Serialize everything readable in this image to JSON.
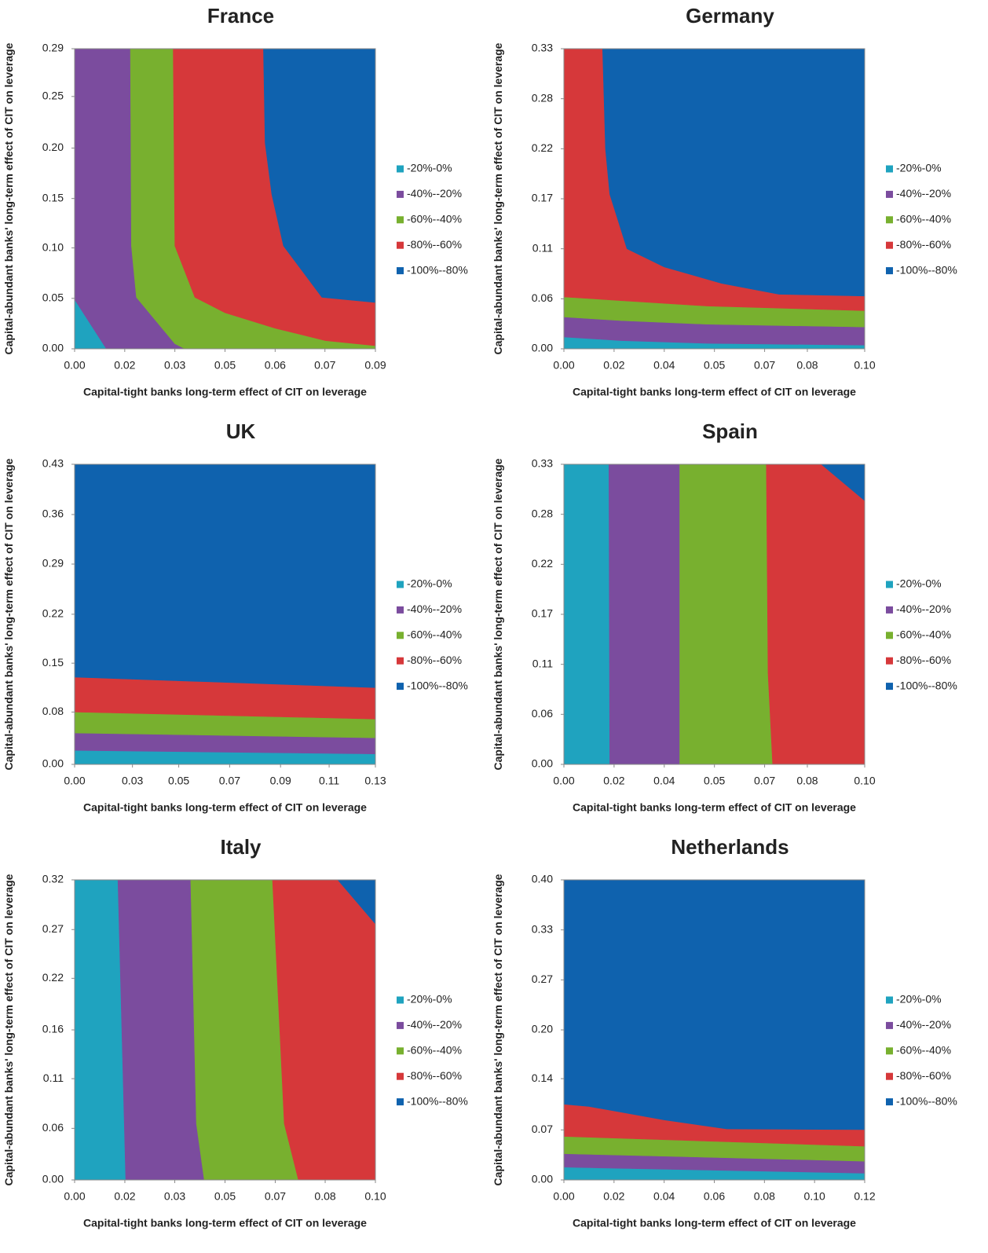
{
  "chart_data": [
    {
      "type": "contour",
      "title": "France",
      "x_label": "Capital-tight  banks long-term effect of CIT on leverage",
      "y_label": "Capital-abundant  banks' long-term effect of CIT on leverage",
      "xlim": [
        0,
        0.09
      ],
      "ylim": [
        0,
        0.2915
      ],
      "xticks": [
        {
          "value": 0,
          "label": "0.00"
        },
        {
          "value": 0.015,
          "label": "0.02"
        },
        {
          "value": 0.03,
          "label": "0.03"
        },
        {
          "value": 0.045,
          "label": "0.05"
        },
        {
          "value": 0.06,
          "label": "0.06"
        },
        {
          "value": 0.0749,
          "label": "0.07"
        },
        {
          "value": 0.09,
          "label": "0.09"
        }
      ],
      "yticks": [
        {
          "value": 0,
          "label": "0.00"
        },
        {
          "value": 0.049,
          "label": "0.05"
        },
        {
          "value": 0.098,
          "label": "0.10"
        },
        {
          "value": 0.146,
          "label": "0.15"
        },
        {
          "value": 0.195,
          "label": "0.20"
        },
        {
          "value": 0.2451,
          "label": "0.25"
        },
        {
          "value": 0.2915,
          "label": "0.29"
        }
      ],
      "series": [
        {
          "name": "-20%-0%",
          "color": "#1fa3bf",
          "x": [
            0,
            0,
            0.0095
          ],
          "y": [
            0,
            0.048,
            0
          ]
        },
        {
          "name": "-40%--20%",
          "color": "#7b4c9e",
          "x": [
            0,
            0,
            0.0167,
            0.017,
            0.0185,
            0.03,
            0.033,
            0.0095
          ],
          "y": [
            0.048,
            0.2915,
            0.2915,
            0.1,
            0.05,
            0.005,
            0,
            0
          ]
        },
        {
          "name": "-60%--40%",
          "color": "#78b02f",
          "x": [
            0.0167,
            0.0295,
            0.03,
            0.036,
            0.045,
            0.06,
            0.075,
            0.09,
            0.09,
            0.033,
            0.03,
            0.0185,
            0.017
          ],
          "y": [
            0.2915,
            0.2915,
            0.1,
            0.05,
            0.035,
            0.02,
            0.008,
            0.003,
            0,
            0,
            0.005,
            0.05,
            0.1
          ]
        },
        {
          "name": "-80%--60%",
          "color": "#d6383a",
          "x": [
            0.0295,
            0.0565,
            0.057,
            0.059,
            0.0625,
            0.074,
            0.09,
            0.09,
            0.075,
            0.06,
            0.045,
            0.036,
            0.03
          ],
          "y": [
            0.2915,
            0.2915,
            0.2,
            0.15,
            0.1,
            0.05,
            0.045,
            0.003,
            0.008,
            0.02,
            0.035,
            0.05,
            0.1
          ]
        },
        {
          "name": "-100%--80%",
          "color": "#0f62ae",
          "x": [
            0.0565,
            0.09,
            0.09,
            0.074,
            0.0625,
            0.059,
            0.057
          ],
          "y": [
            0.2915,
            0.2915,
            0.045,
            0.05,
            0.1,
            0.15,
            0.2
          ]
        }
      ]
    },
    {
      "type": "contour",
      "title": "Germany",
      "x_label": "Capital-tight  banks long-term effect of CIT on leverage",
      "y_label": "Capital-abundant  banks' long-term effect of CIT on leverage",
      "xlim": [
        0,
        0.1049
      ],
      "ylim": [
        0,
        0.33
      ],
      "xticks": [
        {
          "value": 0,
          "label": "0.00"
        },
        {
          "value": 0.0175,
          "label": "0.02"
        },
        {
          "value": 0.035,
          "label": "0.04"
        },
        {
          "value": 0.0525,
          "label": "0.05"
        },
        {
          "value": 0.07,
          "label": "0.07"
        },
        {
          "value": 0.0849,
          "label": "0.08"
        },
        {
          "value": 0.1049,
          "label": "0.10"
        }
      ],
      "yticks": [
        {
          "value": 0,
          "label": "0.00"
        },
        {
          "value": 0.055,
          "label": "0.06"
        },
        {
          "value": 0.11,
          "label": "0.11"
        },
        {
          "value": 0.165,
          "label": "0.17"
        },
        {
          "value": 0.22,
          "label": "0.22"
        },
        {
          "value": 0.275,
          "label": "0.28"
        },
        {
          "value": 0.33,
          "label": "0.33"
        }
      ],
      "series": [
        {
          "name": "-20%-0%",
          "color": "#1fa3bf",
          "x": [
            0,
            0,
            0.02,
            0.05,
            0.1049,
            0.1049
          ],
          "y": [
            0,
            0.013,
            0.009,
            0.006,
            0.004,
            0
          ]
        },
        {
          "name": "-40%--20%",
          "color": "#7b4c9e",
          "x": [
            0,
            0.02,
            0.05,
            0.1049,
            0.1049,
            0.05,
            0.02,
            0
          ],
          "y": [
            0.035,
            0.031,
            0.027,
            0.024,
            0.004,
            0.006,
            0.009,
            0.013
          ]
        },
        {
          "name": "-60%--40%",
          "color": "#78b02f",
          "x": [
            0,
            0.02,
            0.05,
            0.1049,
            0.1049,
            0.05,
            0.02,
            0
          ],
          "y": [
            0.057,
            0.053,
            0.047,
            0.042,
            0.024,
            0.027,
            0.031,
            0.035
          ]
        },
        {
          "name": "-80%--60%",
          "color": "#d6383a",
          "x": [
            0,
            0,
            0.0135,
            0.0145,
            0.016,
            0.022,
            0.035,
            0.055,
            0.075,
            0.1049,
            0.1049,
            0.05,
            0.02
          ],
          "y": [
            0.057,
            0.33,
            0.33,
            0.22,
            0.17,
            0.11,
            0.09,
            0.072,
            0.06,
            0.058,
            0.042,
            0.047,
            0.053
          ]
        },
        {
          "name": "-100%--80%",
          "color": "#0f62ae",
          "x": [
            0.0135,
            0.1049,
            0.1049,
            0.075,
            0.055,
            0.035,
            0.022,
            0.016,
            0.0145
          ],
          "y": [
            0.33,
            0.33,
            0.058,
            0.06,
            0.072,
            0.09,
            0.11,
            0.17,
            0.22
          ]
        }
      ]
    },
    {
      "type": "contour",
      "title": "UK",
      "x_label": "Capital-tight  banks long-term effect of CIT on leverage",
      "y_label": "Capital-abundant  banks' long-term effect of CIT on leverage",
      "xlim": [
        0,
        0.13
      ],
      "ylim": [
        0,
        0.43
      ],
      "xticks": [
        {
          "value": 0,
          "label": "0.00"
        },
        {
          "value": 0.025,
          "label": "0.03"
        },
        {
          "value": 0.045,
          "label": "0.05"
        },
        {
          "value": 0.067,
          "label": "0.07"
        },
        {
          "value": 0.089,
          "label": "0.09"
        },
        {
          "value": 0.11,
          "label": "0.11"
        },
        {
          "value": 0.13,
          "label": "0.13"
        }
      ],
      "yticks": [
        {
          "value": 0,
          "label": "0.00"
        },
        {
          "value": 0.075,
          "label": "0.08"
        },
        {
          "value": 0.145,
          "label": "0.15"
        },
        {
          "value": 0.2151,
          "label": "0.22"
        },
        {
          "value": 0.287,
          "label": "0.29"
        },
        {
          "value": 0.358,
          "label": "0.36"
        },
        {
          "value": 0.43,
          "label": "0.43"
        }
      ],
      "series": [
        {
          "name": "-20%-0%",
          "color": "#1fa3bf",
          "x": [
            0,
            0,
            0.13,
            0.13
          ],
          "y": [
            0,
            0.02,
            0.015,
            0
          ]
        },
        {
          "name": "-40%--20%",
          "color": "#7b4c9e",
          "x": [
            0,
            0.13,
            0.13,
            0
          ],
          "y": [
            0.045,
            0.038,
            0.015,
            0.02
          ]
        },
        {
          "name": "-60%--40%",
          "color": "#78b02f",
          "x": [
            0,
            0.13,
            0.13,
            0
          ],
          "y": [
            0.075,
            0.065,
            0.038,
            0.045
          ]
        },
        {
          "name": "-80%--60%",
          "color": "#d6383a",
          "x": [
            0,
            0.13,
            0.13,
            0
          ],
          "y": [
            0.125,
            0.11,
            0.065,
            0.075
          ]
        },
        {
          "name": "-100%--80%",
          "color": "#0f62ae",
          "x": [
            0,
            0,
            0.13,
            0.13
          ],
          "y": [
            0.125,
            0.43,
            0.43,
            0.11
          ]
        }
      ]
    },
    {
      "type": "contour",
      "title": "Spain",
      "x_label": "Capital-tight  banks long-term effect of CIT on leverage",
      "y_label": "Capital-abundant  banks' long-term effect of CIT on leverage",
      "xlim": [
        0,
        0.1049
      ],
      "ylim": [
        0,
        0.33
      ],
      "xticks": [
        {
          "value": 0,
          "label": "0.00"
        },
        {
          "value": 0.0175,
          "label": "0.02"
        },
        {
          "value": 0.035,
          "label": "0.04"
        },
        {
          "value": 0.0525,
          "label": "0.05"
        },
        {
          "value": 0.07,
          "label": "0.07"
        },
        {
          "value": 0.0849,
          "label": "0.08"
        },
        {
          "value": 0.1049,
          "label": "0.10"
        }
      ],
      "yticks": [
        {
          "value": 0,
          "label": "0.00"
        },
        {
          "value": 0.055,
          "label": "0.06"
        },
        {
          "value": 0.11,
          "label": "0.11"
        },
        {
          "value": 0.165,
          "label": "0.17"
        },
        {
          "value": 0.22,
          "label": "0.22"
        },
        {
          "value": 0.275,
          "label": "0.28"
        },
        {
          "value": 0.33,
          "label": "0.33"
        }
      ],
      "series": [
        {
          "name": "-20%-0%",
          "color": "#1fa3bf",
          "x": [
            0,
            0,
            0.0157,
            0.016
          ],
          "y": [
            0,
            0.33,
            0.33,
            0
          ]
        },
        {
          "name": "-40%--20%",
          "color": "#7b4c9e",
          "x": [
            0.0157,
            0.0404,
            0.0404,
            0.016
          ],
          "y": [
            0.33,
            0.33,
            0,
            0
          ]
        },
        {
          "name": "-60%--40%",
          "color": "#78b02f",
          "x": [
            0.0404,
            0.0706,
            0.0712,
            0.0728,
            0.0404
          ],
          "y": [
            0.33,
            0.33,
            0.1,
            0,
            0
          ]
        },
        {
          "name": "-80%--60%",
          "color": "#d6383a",
          "x": [
            0.0706,
            0.0898,
            0.1049,
            0.1049,
            0.0728,
            0.0712
          ],
          "y": [
            0.33,
            0.33,
            0.29,
            0,
            0,
            0.1
          ]
        },
        {
          "name": "-100%--80%",
          "color": "#0f62ae",
          "x": [
            0.0898,
            0.1049,
            0.1049
          ],
          "y": [
            0.33,
            0.33,
            0.29
          ]
        }
      ]
    },
    {
      "type": "contour",
      "title": "Italy",
      "x_label": "Capital-tight  banks long-term effect of CIT on leverage",
      "y_label": "Capital-abundant  banks' long-term effect of CIT on leverage",
      "xlim": [
        0,
        0.1
      ],
      "ylim": [
        0,
        0.32
      ],
      "xticks": [
        {
          "value": 0,
          "label": "0.00"
        },
        {
          "value": 0.0167,
          "label": "0.02"
        },
        {
          "value": 0.0333,
          "label": "0.03"
        },
        {
          "value": 0.05,
          "label": "0.05"
        },
        {
          "value": 0.0667,
          "label": "0.07"
        },
        {
          "value": 0.0833,
          "label": "0.08"
        },
        {
          "value": 0.1,
          "label": "0.10"
        }
      ],
      "yticks": [
        {
          "value": 0,
          "label": "0.00"
        },
        {
          "value": 0.055,
          "label": "0.06"
        },
        {
          "value": 0.108,
          "label": "0.11"
        },
        {
          "value": 0.16,
          "label": "0.16"
        },
        {
          "value": 0.215,
          "label": "0.22"
        },
        {
          "value": 0.267,
          "label": "0.27"
        },
        {
          "value": 0.32,
          "label": "0.32"
        }
      ],
      "series": [
        {
          "name": "-20%-0%",
          "color": "#1fa3bf",
          "x": [
            0,
            0,
            0.0144,
            0.017
          ],
          "y": [
            0,
            0.32,
            0.32,
            0
          ]
        },
        {
          "name": "-40%--20%",
          "color": "#7b4c9e",
          "x": [
            0.0144,
            0.0386,
            0.0405,
            0.0431,
            0.017
          ],
          "y": [
            0.32,
            0.32,
            0.06,
            0,
            0
          ]
        },
        {
          "name": "-60%--40%",
          "color": "#78b02f",
          "x": [
            0.0386,
            0.0658,
            0.0697,
            0.0744,
            0.0431,
            0.0405
          ],
          "y": [
            0.32,
            0.32,
            0.06,
            0,
            0,
            0.06
          ]
        },
        {
          "name": "-80%--60%",
          "color": "#d6383a",
          "x": [
            0.0658,
            0.0875,
            0.1,
            0.1,
            0.0744,
            0.0697
          ],
          "y": [
            0.32,
            0.32,
            0.273,
            0,
            0,
            0.06
          ]
        },
        {
          "name": "-100%--80%",
          "color": "#0f62ae",
          "x": [
            0.0875,
            0.1,
            0.1
          ],
          "y": [
            0.32,
            0.32,
            0.273
          ]
        }
      ]
    },
    {
      "type": "contour",
      "title": "Netherlands",
      "x_label": "Capital-tight  banks long-term effect of CIT on leverage",
      "y_label": "Capital-abundant  banks' long-term effect of CIT on leverage",
      "xlim": [
        0,
        0.12
      ],
      "ylim": [
        0,
        0.4
      ],
      "xticks": [
        {
          "value": 0,
          "label": "0.00"
        },
        {
          "value": 0.02,
          "label": "0.02"
        },
        {
          "value": 0.04,
          "label": "0.04"
        },
        {
          "value": 0.06,
          "label": "0.06"
        },
        {
          "value": 0.08,
          "label": "0.08"
        },
        {
          "value": 0.1,
          "label": "0.10"
        },
        {
          "value": 0.12,
          "label": "0.12"
        }
      ],
      "yticks": [
        {
          "value": 0,
          "label": "0.00"
        },
        {
          "value": 0.0667,
          "label": "0.07"
        },
        {
          "value": 0.135,
          "label": "0.14"
        },
        {
          "value": 0.2,
          "label": "0.20"
        },
        {
          "value": 0.2667,
          "label": "0.27"
        },
        {
          "value": 0.3333,
          "label": "0.33"
        },
        {
          "value": 0.4,
          "label": "0.40"
        }
      ],
      "series": [
        {
          "name": "-20%-0%",
          "color": "#1fa3bf",
          "x": [
            0,
            0,
            0.12,
            0.12
          ],
          "y": [
            0,
            0.017,
            0.009,
            0
          ]
        },
        {
          "name": "-40%--20%",
          "color": "#7b4c9e",
          "x": [
            0,
            0.12,
            0.12,
            0
          ],
          "y": [
            0.035,
            0.025,
            0.009,
            0.017
          ]
        },
        {
          "name": "-60%--40%",
          "color": "#78b02f",
          "x": [
            0,
            0.12,
            0.12,
            0
          ],
          "y": [
            0.058,
            0.045,
            0.025,
            0.035
          ]
        },
        {
          "name": "-80%--60%",
          "color": "#d6383a",
          "x": [
            0,
            0.01,
            0.02,
            0.04,
            0.065,
            0.12,
            0.12,
            0
          ],
          "y": [
            0.101,
            0.098,
            0.092,
            0.08,
            0.068,
            0.067,
            0.045,
            0.058
          ]
        },
        {
          "name": "-100%--80%",
          "color": "#0f62ae",
          "x": [
            0,
            0,
            0.12,
            0.12,
            0.065,
            0.04,
            0.02,
            0.01
          ],
          "y": [
            0.101,
            0.4,
            0.4,
            0.067,
            0.068,
            0.08,
            0.092,
            0.098
          ]
        }
      ]
    }
  ]
}
